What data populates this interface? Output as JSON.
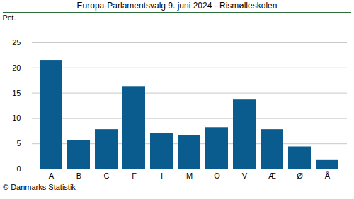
{
  "chart_data": {
    "type": "bar",
    "title": "Europa-Parlamentsvalg 9. juni 2024 - Rismølleskolen",
    "y_label": "Pct.",
    "categories": [
      "A",
      "B",
      "C",
      "F",
      "I",
      "M",
      "O",
      "V",
      "Æ",
      "Ø",
      "Å"
    ],
    "values": [
      21.5,
      5.6,
      7.8,
      16.3,
      7.1,
      6.6,
      8.2,
      13.8,
      7.8,
      4.4,
      1.7
    ],
    "color": "#0b5c8e",
    "ylim": [
      0,
      25
    ],
    "yticks": [
      0,
      5,
      10,
      15,
      20,
      25
    ],
    "grid": true,
    "caption": "© Danmarks Statistik"
  }
}
